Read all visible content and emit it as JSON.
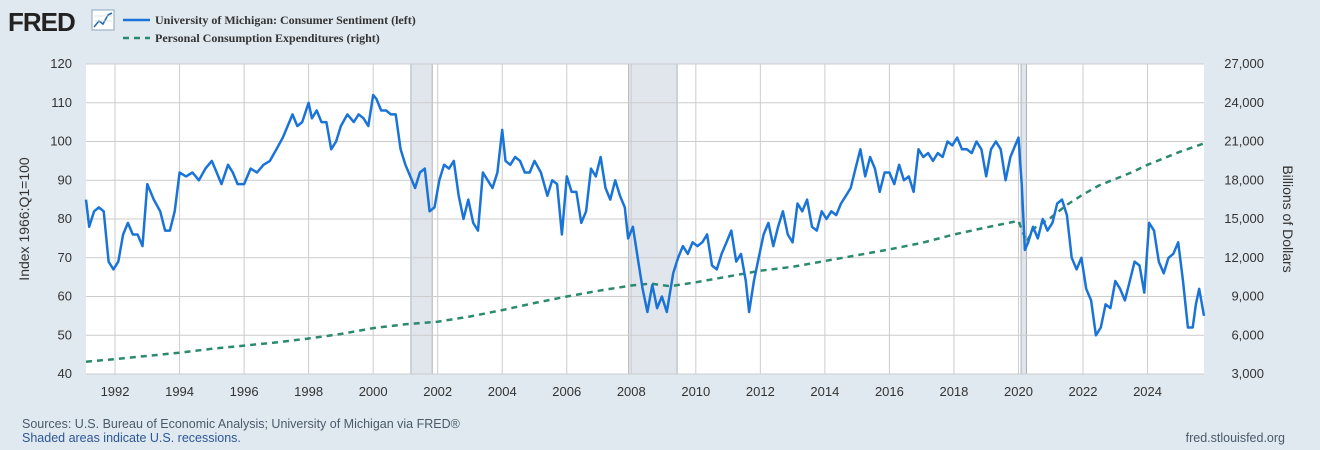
{
  "brand": {
    "logo_text": "FRED",
    "logo_icon": "trend-graph-icon"
  },
  "legend": [
    {
      "label": "University of Michigan: Consumer Sentiment (left)",
      "color": "#1a74d8",
      "style": "solid"
    },
    {
      "label": "Personal Consumption Expenditures (right)",
      "color": "#2b8a6e",
      "style": "dashed"
    }
  ],
  "footer": {
    "sources": "Sources: U.S. Bureau of Economic Analysis; University of Michigan via FRED®",
    "recessions_note": "Shaded areas indicate U.S. recessions.",
    "site": "fred.stlouisfed.org"
  },
  "chart_data": {
    "type": "line",
    "xlim": [
      1991.1,
      2025.75
    ],
    "x_ticks": [
      "1992",
      "1994",
      "1996",
      "1998",
      "2000",
      "2002",
      "2004",
      "2006",
      "2008",
      "2010",
      "2012",
      "2014",
      "2016",
      "2018",
      "2020",
      "2022",
      "2024"
    ],
    "y_left": {
      "label": "Index 1966:Q1=100",
      "ticks": [
        "40",
        "50",
        "60",
        "70",
        "80",
        "90",
        "100",
        "110",
        "120"
      ],
      "min": 40,
      "max": 120
    },
    "y_right": {
      "label": "Billions of Dollars",
      "ticks": [
        "3,000",
        "6,000",
        "9,000",
        "12,000",
        "15,000",
        "18,000",
        "21,000",
        "24,000",
        "27,000"
      ],
      "min": 3000,
      "max": 27000
    },
    "grid": true,
    "recessions": [
      [
        2001.17,
        2001.83
      ],
      [
        2007.92,
        2009.42
      ],
      [
        2020.08,
        2020.25
      ]
    ],
    "colors": {
      "sentiment": "#1a74d8",
      "pce": "#2b8a6e",
      "recession": "#e1e6ec",
      "grid": "#cccccc"
    },
    "series": [
      {
        "name": "University of Michigan: Consumer Sentiment (left)",
        "axis": "left",
        "points": [
          [
            1991.1,
            85
          ],
          [
            1991.2,
            78
          ],
          [
            1991.35,
            82
          ],
          [
            1991.5,
            83
          ],
          [
            1991.65,
            82
          ],
          [
            1991.8,
            69
          ],
          [
            1991.95,
            67
          ],
          [
            1992.1,
            69
          ],
          [
            1992.25,
            76
          ],
          [
            1992.4,
            79
          ],
          [
            1992.55,
            76
          ],
          [
            1992.7,
            76
          ],
          [
            1992.85,
            73
          ],
          [
            1993.0,
            89
          ],
          [
            1993.2,
            85
          ],
          [
            1993.4,
            82
          ],
          [
            1993.55,
            77
          ],
          [
            1993.7,
            77
          ],
          [
            1993.85,
            82
          ],
          [
            1994.0,
            92
          ],
          [
            1994.2,
            91
          ],
          [
            1994.4,
            92
          ],
          [
            1994.6,
            90
          ],
          [
            1994.8,
            93
          ],
          [
            1995.0,
            95
          ],
          [
            1995.15,
            92
          ],
          [
            1995.3,
            89
          ],
          [
            1995.5,
            94
          ],
          [
            1995.65,
            92
          ],
          [
            1995.8,
            89
          ],
          [
            1996.0,
            89
          ],
          [
            1996.2,
            93
          ],
          [
            1996.4,
            92
          ],
          [
            1996.6,
            94
          ],
          [
            1996.8,
            95
          ],
          [
            1997.0,
            98
          ],
          [
            1997.2,
            101
          ],
          [
            1997.4,
            105
          ],
          [
            1997.5,
            107
          ],
          [
            1997.65,
            104
          ],
          [
            1997.8,
            105
          ],
          [
            1998.0,
            110
          ],
          [
            1998.1,
            106
          ],
          [
            1998.25,
            108
          ],
          [
            1998.4,
            105
          ],
          [
            1998.55,
            105
          ],
          [
            1998.7,
            98
          ],
          [
            1998.85,
            100
          ],
          [
            1999.0,
            104
          ],
          [
            1999.2,
            107
          ],
          [
            1999.4,
            105
          ],
          [
            1999.55,
            107
          ],
          [
            1999.7,
            106
          ],
          [
            1999.85,
            104
          ],
          [
            2000.0,
            112
          ],
          [
            2000.1,
            111
          ],
          [
            2000.25,
            108
          ],
          [
            2000.4,
            108
          ],
          [
            2000.55,
            107
          ],
          [
            2000.7,
            107
          ],
          [
            2000.85,
            98
          ],
          [
            2001.0,
            94
          ],
          [
            2001.15,
            91
          ],
          [
            2001.3,
            88
          ],
          [
            2001.45,
            92
          ],
          [
            2001.6,
            93
          ],
          [
            2001.75,
            82
          ],
          [
            2001.9,
            83
          ],
          [
            2002.05,
            90
          ],
          [
            2002.2,
            94
          ],
          [
            2002.35,
            93
          ],
          [
            2002.5,
            95
          ],
          [
            2002.65,
            86
          ],
          [
            2002.8,
            80
          ],
          [
            2002.95,
            85
          ],
          [
            2003.1,
            79
          ],
          [
            2003.25,
            77
          ],
          [
            2003.4,
            92
          ],
          [
            2003.55,
            90
          ],
          [
            2003.7,
            88
          ],
          [
            2003.85,
            92
          ],
          [
            2004.0,
            103
          ],
          [
            2004.1,
            95
          ],
          [
            2004.25,
            94
          ],
          [
            2004.4,
            96
          ],
          [
            2004.55,
            95
          ],
          [
            2004.7,
            92
          ],
          [
            2004.85,
            92
          ],
          [
            2005.0,
            95
          ],
          [
            2005.2,
            92
          ],
          [
            2005.4,
            86
          ],
          [
            2005.55,
            90
          ],
          [
            2005.7,
            89
          ],
          [
            2005.85,
            76
          ],
          [
            2006.0,
            91
          ],
          [
            2006.15,
            87
          ],
          [
            2006.3,
            87
          ],
          [
            2006.45,
            79
          ],
          [
            2006.6,
            82
          ],
          [
            2006.75,
            93
          ],
          [
            2006.9,
            91
          ],
          [
            2007.05,
            96
          ],
          [
            2007.2,
            88
          ],
          [
            2007.35,
            85
          ],
          [
            2007.5,
            90
          ],
          [
            2007.65,
            86
          ],
          [
            2007.8,
            83
          ],
          [
            2007.9,
            75
          ],
          [
            2008.05,
            78
          ],
          [
            2008.2,
            70
          ],
          [
            2008.35,
            62
          ],
          [
            2008.5,
            56
          ],
          [
            2008.65,
            63
          ],
          [
            2008.8,
            57
          ],
          [
            2008.95,
            60
          ],
          [
            2009.1,
            56
          ],
          [
            2009.3,
            66
          ],
          [
            2009.45,
            70
          ],
          [
            2009.6,
            73
          ],
          [
            2009.75,
            71
          ],
          [
            2009.9,
            74
          ],
          [
            2010.05,
            73
          ],
          [
            2010.2,
            74
          ],
          [
            2010.35,
            76
          ],
          [
            2010.5,
            68
          ],
          [
            2010.65,
            67
          ],
          [
            2010.8,
            71
          ],
          [
            2010.95,
            74
          ],
          [
            2011.1,
            77
          ],
          [
            2011.25,
            69
          ],
          [
            2011.4,
            71
          ],
          [
            2011.55,
            64
          ],
          [
            2011.65,
            56
          ],
          [
            2011.8,
            64
          ],
          [
            2011.95,
            70
          ],
          [
            2012.1,
            76
          ],
          [
            2012.25,
            79
          ],
          [
            2012.4,
            73
          ],
          [
            2012.55,
            78
          ],
          [
            2012.7,
            82
          ],
          [
            2012.85,
            76
          ],
          [
            2013.0,
            74
          ],
          [
            2013.15,
            84
          ],
          [
            2013.3,
            82
          ],
          [
            2013.45,
            85
          ],
          [
            2013.6,
            78
          ],
          [
            2013.75,
            77
          ],
          [
            2013.9,
            82
          ],
          [
            2014.05,
            80
          ],
          [
            2014.2,
            82
          ],
          [
            2014.35,
            81
          ],
          [
            2014.5,
            84
          ],
          [
            2014.65,
            86
          ],
          [
            2014.8,
            88
          ],
          [
            2014.95,
            93
          ],
          [
            2015.1,
            98
          ],
          [
            2015.25,
            91
          ],
          [
            2015.4,
            96
          ],
          [
            2015.55,
            93
          ],
          [
            2015.7,
            87
          ],
          [
            2015.85,
            92
          ],
          [
            2016.0,
            92
          ],
          [
            2016.15,
            89
          ],
          [
            2016.3,
            94
          ],
          [
            2016.45,
            90
          ],
          [
            2016.6,
            91
          ],
          [
            2016.75,
            87
          ],
          [
            2016.9,
            98
          ],
          [
            2017.05,
            96
          ],
          [
            2017.2,
            97
          ],
          [
            2017.35,
            95
          ],
          [
            2017.5,
            97
          ],
          [
            2017.65,
            96
          ],
          [
            2017.8,
            100
          ],
          [
            2017.95,
            99
          ],
          [
            2018.1,
            101
          ],
          [
            2018.25,
            98
          ],
          [
            2018.4,
            98
          ],
          [
            2018.55,
            97
          ],
          [
            2018.7,
            100
          ],
          [
            2018.85,
            98
          ],
          [
            2019.0,
            91
          ],
          [
            2019.15,
            98
          ],
          [
            2019.3,
            100
          ],
          [
            2019.45,
            98
          ],
          [
            2019.6,
            90
          ],
          [
            2019.75,
            96
          ],
          [
            2019.9,
            99
          ],
          [
            2020.0,
            101
          ],
          [
            2020.1,
            89
          ],
          [
            2020.2,
            72
          ],
          [
            2020.3,
            74
          ],
          [
            2020.45,
            78
          ],
          [
            2020.6,
            75
          ],
          [
            2020.75,
            80
          ],
          [
            2020.9,
            77
          ],
          [
            2021.05,
            79
          ],
          [
            2021.2,
            84
          ],
          [
            2021.35,
            85
          ],
          [
            2021.5,
            81
          ],
          [
            2021.65,
            70
          ],
          [
            2021.8,
            67
          ],
          [
            2021.95,
            70
          ],
          [
            2022.1,
            62
          ],
          [
            2022.25,
            59
          ],
          [
            2022.4,
            50
          ],
          [
            2022.55,
            52
          ],
          [
            2022.7,
            58
          ],
          [
            2022.85,
            57
          ],
          [
            2023.0,
            64
          ],
          [
            2023.15,
            62
          ],
          [
            2023.3,
            59
          ],
          [
            2023.45,
            64
          ],
          [
            2023.6,
            69
          ],
          [
            2023.75,
            68
          ],
          [
            2023.9,
            61
          ],
          [
            2024.05,
            79
          ],
          [
            2024.2,
            77
          ],
          [
            2024.35,
            69
          ],
          [
            2024.5,
            66
          ],
          [
            2024.65,
            70
          ],
          [
            2024.8,
            71
          ],
          [
            2024.95,
            74
          ],
          [
            2025.1,
            64
          ],
          [
            2025.25,
            52
          ],
          [
            2025.4,
            52
          ],
          [
            2025.5,
            58
          ],
          [
            2025.6,
            62
          ],
          [
            2025.75,
            55
          ]
        ]
      },
      {
        "name": "Personal Consumption Expenditures (right)",
        "axis": "right",
        "points": [
          [
            1991.1,
            3950
          ],
          [
            1992.0,
            4150
          ],
          [
            1993.0,
            4400
          ],
          [
            1994.0,
            4650
          ],
          [
            1995.0,
            4950
          ],
          [
            1996.0,
            5200
          ],
          [
            1997.0,
            5450
          ],
          [
            1998.0,
            5750
          ],
          [
            1999.0,
            6100
          ],
          [
            2000.0,
            6550
          ],
          [
            2001.0,
            6850
          ],
          [
            2002.0,
            7050
          ],
          [
            2003.0,
            7450
          ],
          [
            2004.0,
            7950
          ],
          [
            2005.0,
            8500
          ],
          [
            2006.0,
            9000
          ],
          [
            2007.0,
            9450
          ],
          [
            2008.0,
            9850
          ],
          [
            2008.6,
            10000
          ],
          [
            2009.2,
            9800
          ],
          [
            2010.0,
            10100
          ],
          [
            2011.0,
            10550
          ],
          [
            2012.0,
            11000
          ],
          [
            2013.0,
            11300
          ],
          [
            2014.0,
            11750
          ],
          [
            2015.0,
            12200
          ],
          [
            2016.0,
            12650
          ],
          [
            2017.0,
            13150
          ],
          [
            2018.0,
            13800
          ],
          [
            2019.0,
            14350
          ],
          [
            2020.0,
            14850
          ],
          [
            2020.25,
            13250
          ],
          [
            2020.5,
            14300
          ],
          [
            2021.0,
            15100
          ],
          [
            2021.5,
            16100
          ],
          [
            2022.0,
            16900
          ],
          [
            2022.5,
            17600
          ],
          [
            2023.0,
            18100
          ],
          [
            2023.5,
            18600
          ],
          [
            2024.0,
            19200
          ],
          [
            2024.5,
            19700
          ],
          [
            2025.0,
            20200
          ],
          [
            2025.75,
            20850
          ]
        ]
      }
    ]
  }
}
